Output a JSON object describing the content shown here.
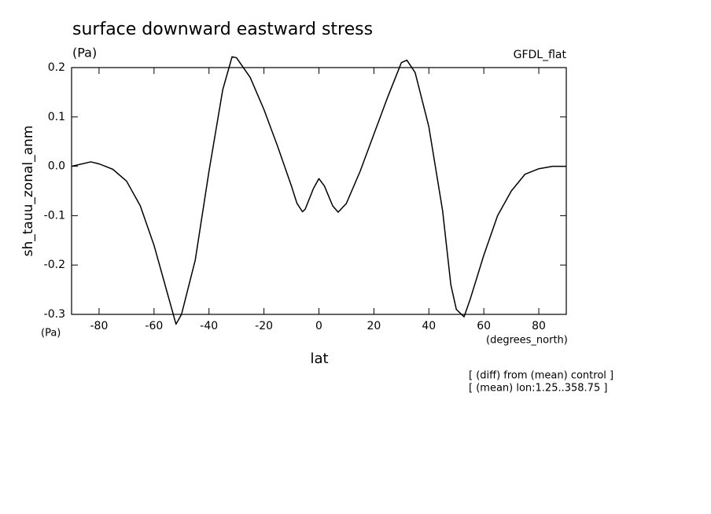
{
  "chart_data": {
    "type": "line",
    "title": "surface downward eastward stress",
    "units_label": "(Pa)",
    "dataset_label": "GFDL_flat",
    "y_label": "sh_tauu_zonal_anm",
    "y_units_label": "(Pa)",
    "x_units_label": "(degrees_north)",
    "x_label": "lat",
    "notes": [
      "[ (diff) from (mean) control ]",
      "[ (mean) lon:1.25..358.75 ]"
    ],
    "x": [
      -90,
      -83,
      -80,
      -75,
      -70,
      -65,
      -60,
      -55,
      -52,
      -50,
      -45,
      -40,
      -35,
      -31.6,
      -30,
      -25,
      -20,
      -15,
      -10,
      -8,
      -6,
      -5,
      -2,
      0,
      2,
      5,
      7,
      10,
      15,
      20,
      25,
      30,
      32,
      35,
      40,
      45,
      48,
      50,
      52.8,
      55,
      60,
      65,
      70,
      75,
      80,
      85,
      90
    ],
    "series": [
      {
        "name": "sh_tauu_zonal_anm",
        "color": "#000000",
        "values": [
          0.0,
          0.009,
          0.005,
          -0.006,
          -0.03,
          -0.08,
          -0.16,
          -0.26,
          -0.32,
          -0.3,
          -0.19,
          -0.01,
          0.155,
          0.222,
          0.22,
          0.18,
          0.115,
          0.04,
          -0.04,
          -0.075,
          -0.092,
          -0.087,
          -0.045,
          -0.025,
          -0.04,
          -0.08,
          -0.093,
          -0.075,
          -0.01,
          0.065,
          0.14,
          0.21,
          0.215,
          0.19,
          0.08,
          -0.09,
          -0.24,
          -0.29,
          -0.305,
          -0.27,
          -0.18,
          -0.1,
          -0.05,
          -0.016,
          -0.005,
          0.0,
          0.0
        ]
      }
    ],
    "xlim": [
      -90,
      90
    ],
    "ylim": [
      -0.3,
      0.2
    ],
    "xticks": [
      -80,
      -60,
      -40,
      -20,
      0,
      20,
      40,
      60,
      80
    ],
    "yticks": [
      -0.3,
      -0.2,
      -0.1,
      {
        "value": 0,
        "label": "0.0"
      },
      0.1,
      0.2
    ]
  }
}
